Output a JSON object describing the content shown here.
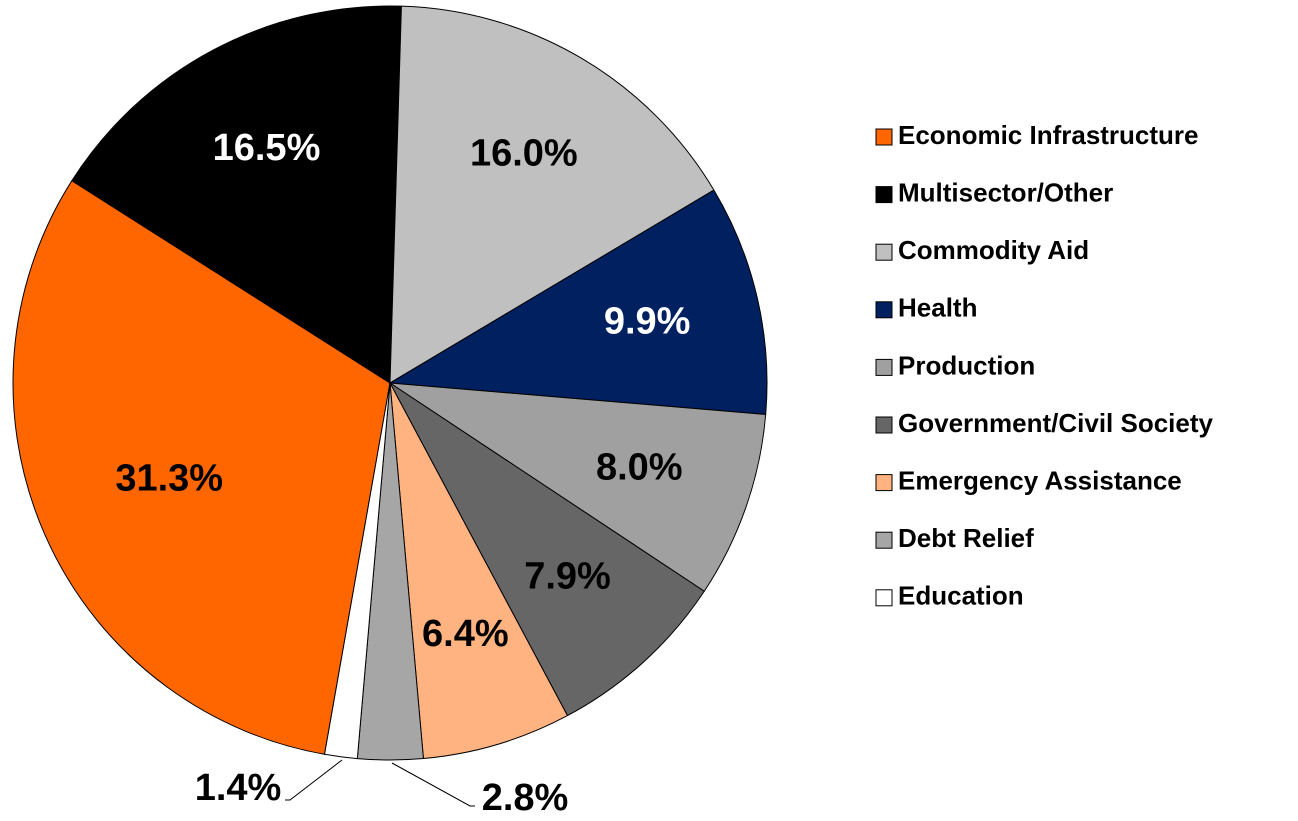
{
  "chart_data": {
    "type": "pie",
    "categories": [
      "Economic Infrastructure",
      "Multisector/Other",
      "Commodity Aid",
      "Health",
      "Production",
      "Government/Civil Society",
      "Emergency Assistance",
      "Debt Relief",
      "Education"
    ],
    "values": [
      31.3,
      16.5,
      16.0,
      9.9,
      8.0,
      7.9,
      6.4,
      2.8,
      1.4
    ],
    "value_labels": [
      "31.3%",
      "16.5%",
      "16.0%",
      "9.9%",
      "8.0%",
      "7.9%",
      "6.4%",
      "2.8%",
      "1.4%"
    ],
    "colors": [
      "#ff6600",
      "#000000",
      "#c0c0c0",
      "#002060",
      "#a0a0a0",
      "#666666",
      "#ffb380",
      "#a6a6a6",
      "#ffffff"
    ],
    "legend": "right"
  }
}
